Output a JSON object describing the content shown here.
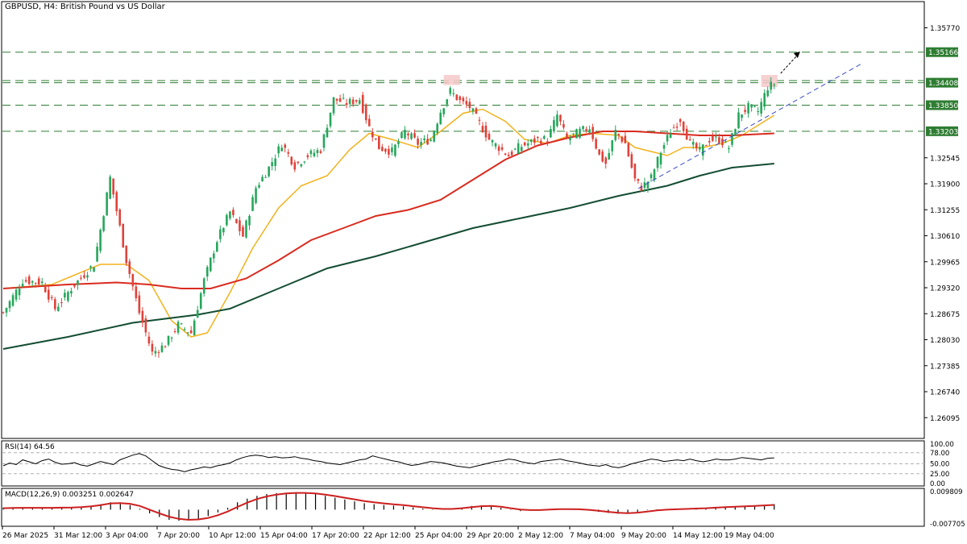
{
  "header": {
    "symbol": "GBPUSD, H4:",
    "description": "British Pound vs US Dollar"
  },
  "colors": {
    "bull": "#26a65b",
    "bear": "#e0423a",
    "ma_fast": "#f2b21c",
    "ma_mid": "#d92b1f",
    "ma_slow": "#134d32",
    "level_line": "#2e7d32",
    "trendline": "#3b4bc8",
    "rsi_line": "#000000",
    "macd_signal": "#cc1f1f",
    "macd_hist": "#000000",
    "highlight": "#f6c9c9"
  },
  "chart_data": [
    {
      "type": "candlestick",
      "title": "",
      "price_axis": {
        "range": [
          1.256,
          1.364
        ],
        "tick_labels": [
          "1.35770",
          "1.35166",
          "1.34408",
          "1.33850",
          "1.33203",
          "1.32545",
          "1.31900",
          "1.31255",
          "1.30610",
          "1.29965",
          "1.29320",
          "1.28675",
          "1.28030",
          "1.27385",
          "1.26740",
          "1.26095"
        ],
        "tick_values": [
          1.3577,
          1.35166,
          1.34408,
          1.3385,
          1.33203,
          1.32545,
          1.319,
          1.31255,
          1.3061,
          1.29965,
          1.2932,
          1.28675,
          1.2803,
          1.27385,
          1.2674,
          1.26095
        ],
        "highlighted_tick_values": [
          1.35166,
          1.34408,
          1.3385,
          1.33203
        ]
      },
      "time_axis": {
        "labels": [
          "26 Mar 2025",
          "31 Mar 12:00",
          "3 Apr 04:00",
          "7 Apr 20:00",
          "10 Apr 12:00",
          "15 Apr 04:00",
          "17 Apr 20:00",
          "22 Apr 12:00",
          "25 Apr 04:00",
          "29 Apr 20:00",
          "2 May 12:00",
          "7 May 04:00",
          "9 May 20:00",
          "14 May 12:00",
          "19 May 04:00"
        ]
      },
      "horizontal_levels": [
        1.35166,
        1.3446,
        1.34408,
        1.3385,
        1.33203
      ],
      "ohlc_anchors": [
        {
          "bar": 0,
          "close": 1.287
        },
        {
          "bar": 6,
          "close": 1.295
        },
        {
          "bar": 12,
          "close": 1.2945
        },
        {
          "bar": 16,
          "close": 1.288
        },
        {
          "bar": 22,
          "close": 1.294
        },
        {
          "bar": 28,
          "close": 1.299
        },
        {
          "bar": 33,
          "close": 1.3205
        },
        {
          "bar": 38,
          "close": 1.3
        },
        {
          "bar": 42,
          "close": 1.287
        },
        {
          "bar": 46,
          "close": 1.277
        },
        {
          "bar": 50,
          "close": 1.279
        },
        {
          "bar": 54,
          "close": 1.284
        },
        {
          "bar": 58,
          "close": 1.282
        },
        {
          "bar": 62,
          "close": 1.295
        },
        {
          "bar": 66,
          "close": 1.305
        },
        {
          "bar": 70,
          "close": 1.312
        },
        {
          "bar": 74,
          "close": 1.306
        },
        {
          "bar": 78,
          "close": 1.318
        },
        {
          "bar": 82,
          "close": 1.323
        },
        {
          "bar": 86,
          "close": 1.329
        },
        {
          "bar": 90,
          "close": 1.3235
        },
        {
          "bar": 94,
          "close": 1.326
        },
        {
          "bar": 98,
          "close": 1.3275
        },
        {
          "bar": 102,
          "close": 1.34
        },
        {
          "bar": 106,
          "close": 1.339
        },
        {
          "bar": 110,
          "close": 1.34
        },
        {
          "bar": 113,
          "close": 1.333
        },
        {
          "bar": 116,
          "close": 1.328
        },
        {
          "bar": 120,
          "close": 1.327
        },
        {
          "bar": 124,
          "close": 1.332
        },
        {
          "bar": 128,
          "close": 1.329
        },
        {
          "bar": 132,
          "close": 1.33
        },
        {
          "bar": 135,
          "close": 1.337
        },
        {
          "bar": 138,
          "close": 1.342
        },
        {
          "bar": 141,
          "close": 1.3395
        },
        {
          "bar": 144,
          "close": 1.338
        },
        {
          "bar": 147,
          "close": 1.334
        },
        {
          "bar": 150,
          "close": 1.33
        },
        {
          "bar": 153,
          "close": 1.328
        },
        {
          "bar": 156,
          "close": 1.326
        },
        {
          "bar": 159,
          "close": 1.328
        },
        {
          "bar": 162,
          "close": 1.329
        },
        {
          "bar": 165,
          "close": 1.33
        },
        {
          "bar": 168,
          "close": 1.33
        },
        {
          "bar": 171,
          "close": 1.336
        },
        {
          "bar": 174,
          "close": 1.33
        },
        {
          "bar": 178,
          "close": 1.332
        },
        {
          "bar": 181,
          "close": 1.333
        },
        {
          "bar": 184,
          "close": 1.326
        },
        {
          "bar": 186,
          "close": 1.324
        },
        {
          "bar": 189,
          "close": 1.332
        },
        {
          "bar": 192,
          "close": 1.329
        },
        {
          "bar": 195,
          "close": 1.32
        },
        {
          "bar": 197,
          "close": 1.318
        },
        {
          "bar": 200,
          "close": 1.3205
        },
        {
          "bar": 203,
          "close": 1.327
        },
        {
          "bar": 206,
          "close": 1.332
        },
        {
          "bar": 209,
          "close": 1.335
        },
        {
          "bar": 212,
          "close": 1.329
        },
        {
          "bar": 215,
          "close": 1.327
        },
        {
          "bar": 218,
          "close": 1.33
        },
        {
          "bar": 221,
          "close": 1.33
        },
        {
          "bar": 224,
          "close": 1.328
        },
        {
          "bar": 227,
          "close": 1.336
        },
        {
          "bar": 230,
          "close": 1.338
        },
        {
          "bar": 233,
          "close": 1.337
        },
        {
          "bar": 236,
          "close": 1.343
        },
        {
          "bar": 238,
          "close": 1.3438
        }
      ],
      "bars_total": 239,
      "moving_averages": [
        {
          "key": "fast",
          "points": [
            [
              0,
              1.293
            ],
            [
              15,
              1.294
            ],
            [
              30,
              1.299
            ],
            [
              38,
              1.299
            ],
            [
              45,
              1.295
            ],
            [
              52,
              1.285
            ],
            [
              58,
              1.281
            ],
            [
              63,
              1.282
            ],
            [
              70,
              1.292
            ],
            [
              77,
              1.303
            ],
            [
              85,
              1.313
            ],
            [
              92,
              1.3185
            ],
            [
              100,
              1.321
            ],
            [
              107,
              1.3275
            ],
            [
              113,
              1.3315
            ],
            [
              120,
              1.33
            ],
            [
              128,
              1.328
            ],
            [
              135,
              1.332
            ],
            [
              142,
              1.3365
            ],
            [
              148,
              1.3375
            ],
            [
              155,
              1.3345
            ],
            [
              161,
              1.33
            ],
            [
              168,
              1.329
            ],
            [
              175,
              1.331
            ],
            [
              182,
              1.3315
            ],
            [
              190,
              1.331
            ],
            [
              195,
              1.328
            ],
            [
              200,
              1.327
            ],
            [
              205,
              1.326
            ],
            [
              210,
              1.328
            ],
            [
              216,
              1.328
            ],
            [
              222,
              1.329
            ],
            [
              228,
              1.331
            ],
            [
              234,
              1.334
            ],
            [
              238,
              1.336
            ]
          ]
        },
        {
          "key": "mid",
          "points": [
            [
              0,
              1.293
            ],
            [
              20,
              1.294
            ],
            [
              35,
              1.2945
            ],
            [
              45,
              1.294
            ],
            [
              55,
              1.293
            ],
            [
              64,
              1.293
            ],
            [
              75,
              1.2955
            ],
            [
              85,
              1.3
            ],
            [
              95,
              1.305
            ],
            [
              105,
              1.308
            ],
            [
              115,
              1.311
            ],
            [
              125,
              1.3125
            ],
            [
              135,
              1.315
            ],
            [
              145,
              1.32
            ],
            [
              155,
              1.325
            ],
            [
              165,
              1.3285
            ],
            [
              175,
              1.3305
            ],
            [
              185,
              1.332
            ],
            [
              195,
              1.332
            ],
            [
              205,
              1.3315
            ],
            [
              215,
              1.331
            ],
            [
              225,
              1.331
            ],
            [
              238,
              1.3315
            ]
          ]
        },
        {
          "key": "slow",
          "points": [
            [
              0,
              1.278
            ],
            [
              20,
              1.281
            ],
            [
              40,
              1.2845
            ],
            [
              60,
              1.2865
            ],
            [
              70,
              1.288
            ],
            [
              85,
              1.293
            ],
            [
              100,
              1.298
            ],
            [
              115,
              1.301
            ],
            [
              130,
              1.3045
            ],
            [
              145,
              1.308
            ],
            [
              160,
              1.3105
            ],
            [
              175,
              1.313
            ],
            [
              190,
              1.316
            ],
            [
              205,
              1.3185
            ],
            [
              215,
              1.321
            ],
            [
              225,
              1.323
            ],
            [
              238,
              1.324
            ]
          ]
        }
      ],
      "trendline": {
        "from": {
          "bar": 196,
          "price": 1.3178
        },
        "to": {
          "bar": 265,
          "price": 1.3488
        }
      },
      "arrow": {
        "from": {
          "bar": 240,
          "price": 1.3464
        },
        "to": {
          "bar": 246,
          "price": 1.3518
        }
      },
      "highlight_zones": [
        {
          "bar_from": 136,
          "bar_to": 141,
          "price_from": 1.3435,
          "price_to": 1.346
        },
        {
          "bar_from": 234,
          "bar_to": 239,
          "price_from": 1.343,
          "price_to": 1.346
        }
      ]
    },
    {
      "type": "line",
      "title": "RSI(14) 64.56",
      "levels": [
        "100.00",
        "78.00",
        "50.00",
        "25.00",
        "0.00"
      ],
      "level_values": [
        100,
        78,
        50,
        25,
        0
      ],
      "dashed_levels": [
        78,
        50,
        25
      ],
      "series": [
        {
          "values": [
            45,
            52,
            48,
            60,
            55,
            50,
            58,
            62,
            54,
            49,
            50,
            53,
            47,
            44,
            50,
            56,
            52,
            48,
            60,
            66,
            72,
            76,
            70,
            58,
            46,
            40,
            36,
            34,
            30,
            35,
            38,
            42,
            40,
            45,
            48,
            52,
            60,
            66,
            70,
            72,
            70,
            66,
            68,
            65,
            66,
            68,
            64,
            62,
            58,
            56,
            52,
            50,
            48,
            52,
            56,
            60,
            62,
            70,
            66,
            62,
            58,
            55,
            50,
            46,
            48,
            52,
            56,
            54,
            52,
            48,
            44,
            42,
            40,
            44,
            48,
            52,
            56,
            58,
            62,
            60,
            55,
            52,
            50,
            56,
            58,
            60,
            62,
            58,
            55,
            52,
            48,
            46,
            44,
            48,
            42,
            40,
            44,
            50,
            54,
            58,
            62,
            60,
            56,
            58,
            60,
            58,
            62,
            58,
            55,
            58,
            62,
            60,
            60,
            62,
            66,
            64,
            62,
            60,
            64,
            65
          ]
        }
      ]
    },
    {
      "type": "bar",
      "title": "MACD(12,26,9) 0.003251 0.002647",
      "scale_labels": [
        "0.009809",
        "-0.007705"
      ],
      "scale_values": [
        0.009809,
        -0.007705
      ],
      "series": [
        {
          "name": "histogram",
          "values": [
            0.0012,
            0.0013,
            0.0012,
            0.0011,
            0.001,
            0.0011,
            0.0012,
            0.0014,
            0.0016,
            0.002,
            0.003,
            0.004,
            0.0036,
            0.0025,
            0.0005,
            -0.002,
            -0.004,
            -0.0055,
            -0.006,
            -0.0058,
            -0.005,
            -0.0035,
            -0.0015,
            0.001,
            0.004,
            0.006,
            0.0075,
            0.0085,
            0.009,
            0.0092,
            0.0092,
            0.009,
            0.0085,
            0.0075,
            0.0065,
            0.0055,
            0.0045,
            0.0035,
            0.003,
            0.0025,
            0.0022,
            0.0018,
            0.0012,
            0.0006,
            0.0002,
            0.0,
            0.0004,
            0.0012,
            0.002,
            0.0024,
            0.002,
            0.001,
            -0.0002,
            -0.0008,
            -0.0004,
            0.0,
            0.0004,
            0.0006,
            0.0004,
            0.0,
            -0.0005,
            -0.0012,
            -0.0018,
            -0.0022,
            -0.002,
            -0.0012,
            -0.0002,
            0.0002,
            0.0002,
            0.0003,
            0.0006,
            0.0008,
            0.001,
            0.0013,
            0.0016,
            0.0018,
            0.002,
            0.0022,
            0.0025,
            0.003
          ]
        },
        {
          "name": "signal",
          "values": [
            0.0008,
            0.0009,
            0.001,
            0.001,
            0.001,
            0.001,
            0.0011,
            0.0012,
            0.0014,
            0.0018,
            0.0025,
            0.0034,
            0.0036,
            0.0032,
            0.002,
            0.0,
            -0.002,
            -0.0038,
            -0.005,
            -0.0055,
            -0.0053,
            -0.0045,
            -0.003,
            -0.001,
            0.0015,
            0.0038,
            0.0058,
            0.0072,
            0.0082,
            0.0088,
            0.0091,
            0.0091,
            0.0088,
            0.0082,
            0.0074,
            0.0065,
            0.0056,
            0.0047,
            0.004,
            0.0034,
            0.0029,
            0.0025,
            0.0019,
            0.0013,
            0.0008,
            0.0004,
            0.0004,
            0.0008,
            0.0014,
            0.0019,
            0.002,
            0.0016,
            0.0008,
            0.0001,
            -0.0002,
            -0.0002,
            0.0001,
            0.0003,
            0.0003,
            0.0002,
            -0.0001,
            -0.0006,
            -0.0012,
            -0.0017,
            -0.0019,
            -0.0016,
            -0.001,
            -0.0004,
            0.0,
            0.0002,
            0.0004,
            0.0006,
            0.0008,
            0.0011,
            0.0014,
            0.0016,
            0.0018,
            0.002,
            0.0023,
            0.0026
          ]
        }
      ]
    }
  ]
}
